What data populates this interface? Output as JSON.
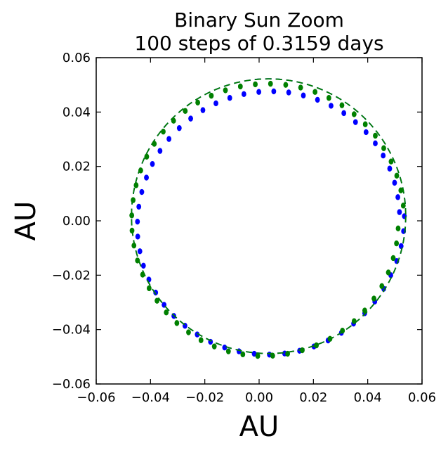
{
  "chart_data": {
    "type": "scatter",
    "title_lines": [
      "Binary Sun Zoom",
      "100 steps of 0.3159 days"
    ],
    "xlabel": "AU",
    "ylabel": "AU",
    "xlim": [
      -0.06,
      0.06
    ],
    "ylim": [
      -0.06,
      0.06
    ],
    "x_ticks": [
      -0.06,
      -0.04,
      -0.02,
      0.0,
      0.02,
      0.04,
      0.06
    ],
    "y_ticks": [
      -0.06,
      -0.04,
      -0.02,
      0.0,
      0.02,
      0.04,
      0.06
    ],
    "x_tick_labels": [
      "−0.06",
      "−0.04",
      "−0.02",
      "0.00",
      "0.02",
      "0.04",
      "0.06"
    ],
    "y_tick_labels": [
      "−0.06",
      "−0.04",
      "−0.02",
      "0.00",
      "0.02",
      "0.04",
      "0.06"
    ],
    "grid": false,
    "series": [
      {
        "color": "#0000ff",
        "marker": "circle",
        "line_style": "dashed",
        "orbit_center": [
          0.0035,
          0.0017
        ],
        "orbit_radius": 0.0505,
        "points": [
          [
            0.0535,
            0.0017
          ],
          [
            0.0532,
            -0.0038
          ],
          [
            0.0523,
            -0.0093
          ],
          [
            0.0507,
            -0.0148
          ],
          [
            0.0485,
            -0.02
          ],
          [
            0.0459,
            -0.025
          ],
          [
            0.0426,
            -0.0297
          ],
          [
            0.0389,
            -0.034
          ],
          [
            0.0348,
            -0.0378
          ],
          [
            0.0303,
            -0.0412
          ],
          [
            0.0254,
            -0.044
          ],
          [
            0.0202,
            -0.0462
          ],
          [
            0.0149,
            -0.0478
          ],
          [
            0.0094,
            -0.0488
          ],
          [
            0.0038,
            -0.0492
          ],
          [
            -0.0018,
            -0.0489
          ],
          [
            -0.0074,
            -0.048
          ],
          [
            -0.0127,
            -0.0466
          ],
          [
            -0.0179,
            -0.0445
          ],
          [
            -0.0228,
            -0.0418
          ],
          [
            -0.0273,
            -0.0386
          ],
          [
            -0.0314,
            -0.035
          ],
          [
            -0.035,
            -0.0309
          ],
          [
            -0.0381,
            -0.0264
          ],
          [
            -0.0406,
            -0.0216
          ],
          [
            -0.0426,
            -0.0165
          ],
          [
            -0.0439,
            -0.0112
          ],
          [
            -0.0447,
            -0.0058
          ],
          [
            -0.0448,
            -0.0003
          ],
          [
            -0.0443,
            0.0052
          ],
          [
            -0.0432,
            0.0106
          ],
          [
            -0.0415,
            0.0159
          ],
          [
            -0.0393,
            0.0209
          ],
          [
            -0.0365,
            0.0257
          ],
          [
            -0.0332,
            0.0301
          ],
          [
            -0.0294,
            0.0341
          ],
          [
            -0.0252,
            0.0376
          ],
          [
            -0.0207,
            0.0407
          ],
          [
            -0.0159,
            0.0432
          ],
          [
            -0.0108,
            0.0452
          ],
          [
            -0.0056,
            0.0466
          ],
          [
            -0.0001,
            0.0474
          ],
          [
            0.0054,
            0.0476
          ],
          [
            0.0109,
            0.0472
          ],
          [
            0.0163,
            0.0461
          ],
          [
            0.0215,
            0.0445
          ],
          [
            0.0265,
            0.0423
          ],
          [
            0.0312,
            0.0396
          ],
          [
            0.0355,
            0.0363
          ],
          [
            0.0394,
            0.0326
          ],
          [
            0.0428,
            0.0285
          ],
          [
            0.0457,
            0.024
          ],
          [
            0.0481,
            0.0192
          ],
          [
            0.0499,
            0.014
          ],
          [
            0.0511,
            0.0087
          ],
          [
            0.0517,
            0.0032
          ]
        ]
      },
      {
        "color": "#008000",
        "marker": "circle",
        "line_style": "dashed",
        "orbit_center": [
          0.0035,
          0.0017
        ],
        "orbit_radius": 0.0505,
        "points": [
          [
            0.0531,
            0.0056
          ],
          [
            0.0522,
            0.0112
          ],
          [
            0.0507,
            0.0166
          ],
          [
            0.0486,
            0.0218
          ],
          [
            0.0459,
            0.0267
          ],
          [
            0.0428,
            0.0313
          ],
          [
            0.0391,
            0.0355
          ],
          [
            0.035,
            0.0392
          ],
          [
            0.0305,
            0.0425
          ],
          [
            0.0257,
            0.0452
          ],
          [
            0.0206,
            0.0474
          ],
          [
            0.0153,
            0.049
          ],
          [
            0.0098,
            0.05
          ],
          [
            0.0042,
            0.0504
          ],
          [
            -0.0014,
            0.0502
          ],
          [
            -0.0069,
            0.0494
          ],
          [
            -0.0124,
            0.048
          ],
          [
            -0.0176,
            0.046
          ],
          [
            -0.0226,
            0.0435
          ],
          [
            -0.0272,
            0.0404
          ],
          [
            -0.0315,
            0.0368
          ],
          [
            -0.0353,
            0.0328
          ],
          [
            -0.0386,
            0.0283
          ],
          [
            -0.0414,
            0.0236
          ],
          [
            -0.0436,
            0.0185
          ],
          [
            -0.0453,
            0.0131
          ],
          [
            -0.0464,
            0.0076
          ],
          [
            -0.0469,
            0.002
          ],
          [
            -0.0468,
            -0.0036
          ],
          [
            -0.0461,
            -0.0091
          ],
          [
            -0.0448,
            -0.0146
          ],
          [
            -0.0429,
            -0.0198
          ],
          [
            -0.0405,
            -0.0248
          ],
          [
            -0.0376,
            -0.0294
          ],
          [
            -0.0342,
            -0.0337
          ],
          [
            -0.0303,
            -0.0376
          ],
          [
            -0.026,
            -0.041
          ],
          [
            -0.0214,
            -0.0439
          ],
          [
            -0.0165,
            -0.0462
          ],
          [
            -0.0113,
            -0.048
          ],
          [
            -0.006,
            -0.0491
          ],
          [
            -0.0005,
            -0.0497
          ],
          [
            0.005,
            -0.0496
          ],
          [
            0.0105,
            -0.0489
          ],
          [
            0.0159,
            -0.0476
          ],
          [
            0.0211,
            -0.0458
          ],
          [
            0.0261,
            -0.0434
          ],
          [
            0.0307,
            -0.0404
          ],
          [
            0.035,
            -0.0369
          ],
          [
            0.0389,
            -0.033
          ],
          [
            0.0423,
            -0.0286
          ],
          [
            0.0452,
            -0.024
          ],
          [
            0.0476,
            -0.019
          ],
          [
            0.0494,
            -0.0137
          ],
          [
            0.0506,
            -0.0083
          ],
          [
            0.0512,
            -0.0028
          ]
        ]
      }
    ]
  }
}
